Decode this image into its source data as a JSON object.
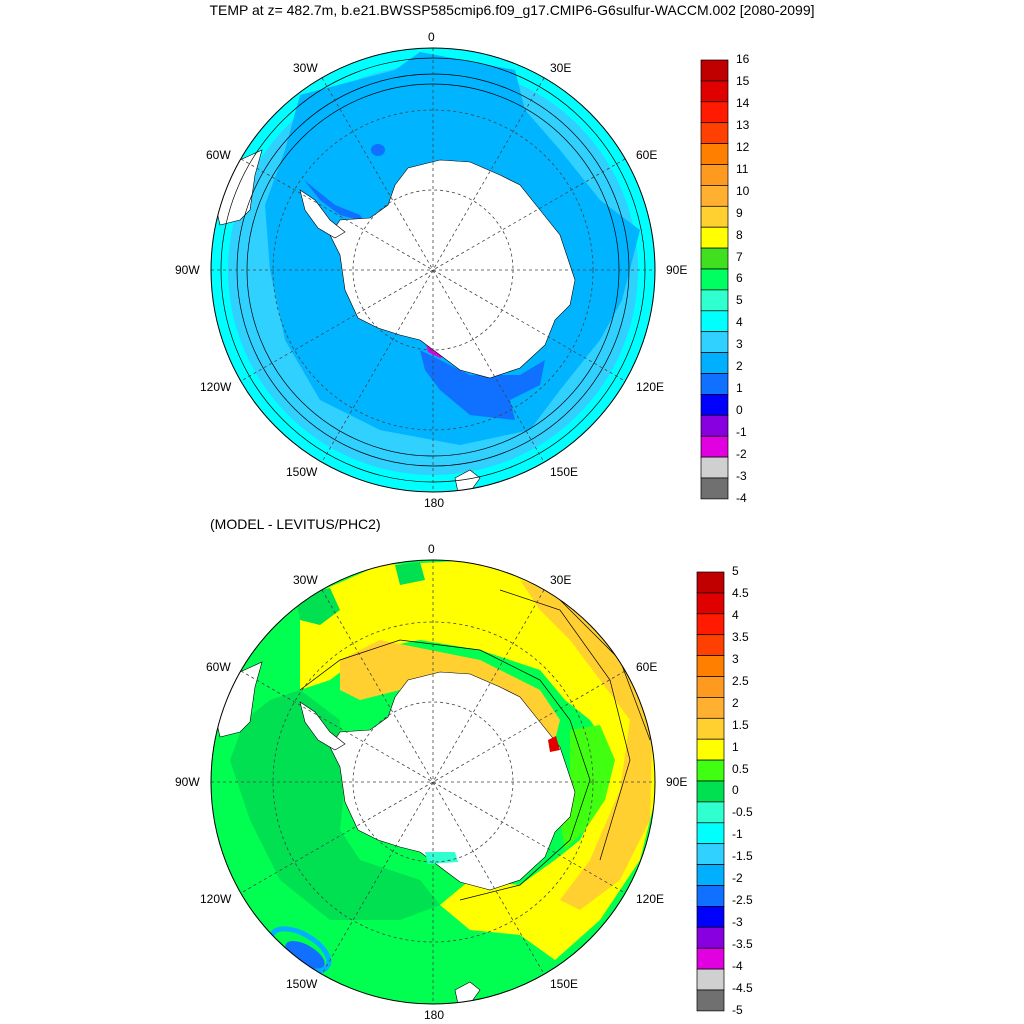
{
  "title": "TEMP at z= 482.7m, b.e21.BWSSP585cmip6.f09_g17.CMIP6-G6sulfur-WACCM.002 [2080-2099]",
  "subtitle": "(MODEL - LEVITUS/PHC2)",
  "lon_labels": [
    "0",
    "30E",
    "60E",
    "90E",
    "120E",
    "150E",
    "180",
    "150W",
    "120W",
    "90W",
    "60W",
    "30W"
  ],
  "top_panel": {
    "colorbar_labels": [
      "16",
      "15",
      "14",
      "13",
      "12",
      "11",
      "10",
      "9",
      "8",
      "7",
      "6",
      "5",
      "4",
      "3",
      "2",
      "1",
      "0",
      "-1",
      "-2",
      "-3",
      "-4"
    ],
    "colors": [
      "#c00000",
      "#e00000",
      "#ff1a00",
      "#ff4000",
      "#ff8000",
      "#ff9a20",
      "#ffb030",
      "#ffd030",
      "#ffff00",
      "#40e020",
      "#00ff60",
      "#30ffd0",
      "#00ffff",
      "#30d0ff",
      "#00b0ff",
      "#1070ff",
      "#0000ff",
      "#8800e0",
      "#e000e0",
      "#d0d0d0",
      "#707070"
    ]
  },
  "bottom_panel": {
    "colorbar_labels": [
      "5",
      "4.5",
      "4",
      "3.5",
      "3",
      "2.5",
      "2",
      "1.5",
      "1",
      "0.5",
      "0",
      "-0.5",
      "-1",
      "-1.5",
      "-2",
      "-2.5",
      "-3",
      "-3.5",
      "-4",
      "-4.5",
      "-5"
    ],
    "colors": [
      "#c00000",
      "#e00000",
      "#ff1a00",
      "#ff4000",
      "#ff8000",
      "#ff9a20",
      "#ffb030",
      "#ffd030",
      "#ffff00",
      "#40ff10",
      "#00e050",
      "#30ffd0",
      "#00ffff",
      "#30d0ff",
      "#00b0ff",
      "#1070ff",
      "#0000ff",
      "#8800e0",
      "#e000e0",
      "#d0d0d0",
      "#707070"
    ]
  },
  "colors": {
    "ocean_top_main": "#00b4ff",
    "ocean_top_outer": "#30d0ff",
    "ocean_top_edge": "#00ffff",
    "ocean_bottom_main": "#00ff50",
    "ocean_bottom_warm": "#ffff00",
    "ocean_bottom_orange": "#ffd030",
    "land": "#ffffff"
  }
}
